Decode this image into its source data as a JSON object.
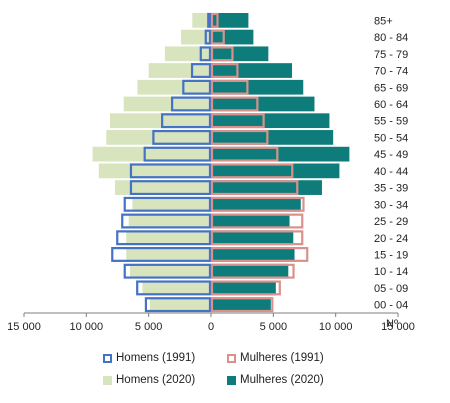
{
  "chart_data": {
    "type": "bar",
    "orientation": "horizontal",
    "categories": [
      "00 - 04",
      "05 - 09",
      "10 - 14",
      "15 - 19",
      "20 - 24",
      "25 - 29",
      "30 - 34",
      "35 - 39",
      "40 - 44",
      "45 - 49",
      "50 - 54",
      "55 - 59",
      "60 - 64",
      "65 - 69",
      "70 - 74",
      "75 - 79",
      "80 - 84",
      "85+"
    ],
    "series": [
      {
        "name": "Homens (1991)",
        "style": "outline",
        "color": "#4472C4",
        "side": "left",
        "values": [
          5300,
          6000,
          7000,
          8000,
          7600,
          7200,
          7000,
          6500,
          6500,
          5400,
          4700,
          4000,
          3200,
          2300,
          1600,
          900,
          500,
          300
        ]
      },
      {
        "name": "Mulheres (1991)",
        "style": "outline",
        "color": "#D9918B",
        "side": "right",
        "values": [
          5000,
          5600,
          6700,
          7800,
          7400,
          7400,
          7500,
          7000,
          6600,
          5400,
          4600,
          4300,
          3800,
          3000,
          2200,
          1800,
          1100,
          600
        ]
      },
      {
        "name": "Homens (2020)",
        "style": "filled",
        "color": "#D7E4BD",
        "side": "left",
        "values": [
          4900,
          5500,
          6500,
          6800,
          6800,
          6600,
          6300,
          7700,
          9000,
          9500,
          8400,
          8100,
          7000,
          5900,
          5000,
          3700,
          2400,
          1500
        ]
      },
      {
        "name": "Mulheres (2020)",
        "style": "filled",
        "color": "#0E7C7B",
        "side": "right",
        "values": [
          4800,
          5200,
          6200,
          6700,
          6600,
          6300,
          7200,
          8900,
          10300,
          11100,
          9800,
          9500,
          8300,
          7400,
          6500,
          4600,
          3400,
          3000
        ]
      }
    ],
    "xlim": [
      -15000,
      15000
    ],
    "xticks": [
      -15000,
      -10000,
      -5000,
      0,
      5000,
      10000,
      15000
    ],
    "xtick_labels": [
      "15 000",
      "10 000",
      "5 000",
      "0",
      "5 000",
      "10 000",
      "15 000"
    ],
    "xlabel": "Nº",
    "grid": false,
    "legend_position": "bottom"
  }
}
